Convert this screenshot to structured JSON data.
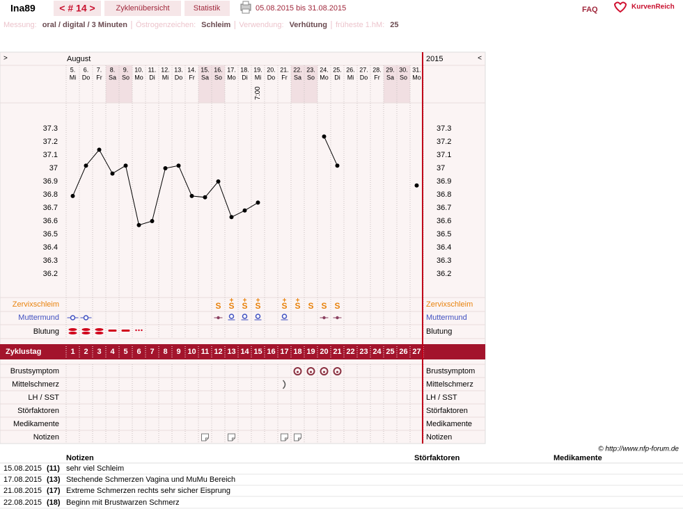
{
  "header": {
    "user": "Ina89",
    "cycle": "< # 14 >",
    "tabs": [
      "Zyklenübersicht",
      "Statistik"
    ],
    "date_range": "05.08.2015 bis 31.08.2015",
    "faq": "FAQ",
    "logo": "KurvenReich"
  },
  "info": [
    {
      "label": "Messung:",
      "value": "oral / digital / 3 Minuten"
    },
    {
      "label": "Östrogenzeichen:",
      "value": "Schleim"
    },
    {
      "label": "Verwendung:",
      "value": "Verhütung"
    },
    {
      "label": "früheste 1.hM:",
      "value": "25"
    }
  ],
  "chart_data": {
    "type": "line",
    "nav_left": ">",
    "nav_right": "<",
    "month": "August",
    "year": "2015",
    "categories": [
      "5.",
      "6.",
      "7.",
      "8.",
      "9.",
      "10.",
      "11.",
      "12.",
      "13.",
      "14.",
      "15.",
      "16.",
      "17.",
      "18.",
      "19.",
      "20.",
      "21.",
      "22.",
      "23.",
      "24.",
      "25.",
      "26.",
      "27.",
      "28.",
      "29.",
      "30.",
      "31."
    ],
    "weekdays": [
      "Mi",
      "Do",
      "Fr",
      "Sa",
      "So",
      "Mo",
      "Di",
      "Mi",
      "Do",
      "Fr",
      "Sa",
      "So",
      "Mo",
      "Di",
      "Mi",
      "Do",
      "Fr",
      "Sa",
      "So",
      "Mo",
      "Di",
      "Mi",
      "Do",
      "Fr",
      "Sa",
      "So",
      "Mo"
    ],
    "times": [
      null,
      null,
      null,
      null,
      null,
      null,
      null,
      null,
      null,
      null,
      null,
      null,
      null,
      null,
      "7:00",
      null,
      null,
      null,
      null,
      null,
      null,
      null,
      null,
      null,
      null,
      null,
      null
    ],
    "values": [
      36.79,
      37.02,
      37.14,
      36.96,
      37.02,
      36.57,
      36.6,
      37.0,
      37.02,
      36.79,
      36.78,
      36.9,
      36.63,
      36.68,
      36.74,
      null,
      null,
      null,
      null,
      37.24,
      37.02,
      null,
      null,
      null,
      null,
      null,
      36.87
    ],
    "color": "#000000",
    "ylim": [
      36.2,
      37.3
    ],
    "yticks": [
      37.3,
      37.2,
      37.1,
      37,
      36.9,
      36.8,
      36.7,
      36.6,
      36.5,
      36.4,
      36.3,
      36.2
    ],
    "grid": false,
    "rows_top": [
      {
        "label": "Zervixschleim",
        "color": "#e8820c",
        "values": [
          null,
          null,
          null,
          null,
          null,
          null,
          null,
          null,
          null,
          null,
          null,
          "S",
          "S+",
          "S+",
          "S+",
          null,
          "S+",
          "S+",
          "S",
          "S",
          "S",
          null,
          null,
          null,
          null,
          null,
          null
        ]
      },
      {
        "label": "Muttermund",
        "color": "#4050c0",
        "values": [
          "open-line",
          "open-line",
          null,
          null,
          null,
          null,
          null,
          null,
          null,
          null,
          null,
          "dot-line",
          "open",
          "open",
          "open",
          null,
          "open",
          null,
          null,
          "dot-line",
          "dot-line",
          null,
          null,
          null,
          null,
          null,
          null
        ]
      },
      {
        "label": "Blutung",
        "color": "#000000",
        "values": [
          "heavy",
          "heavy",
          "heavy",
          "medium",
          "medium",
          "light",
          null,
          null,
          null,
          null,
          null,
          null,
          null,
          null,
          null,
          null,
          null,
          null,
          null,
          null,
          null,
          null,
          null,
          null,
          null,
          null,
          null
        ]
      }
    ],
    "cycle_day_label": "Zyklustag",
    "cycle_days": [
      1,
      2,
      3,
      4,
      5,
      6,
      7,
      8,
      9,
      10,
      11,
      12,
      13,
      14,
      15,
      16,
      17,
      18,
      19,
      20,
      21,
      22,
      23,
      24,
      25,
      26,
      27
    ],
    "rows_bottom": [
      {
        "label": "Brustsymptom",
        "values": [
          null,
          null,
          null,
          null,
          null,
          null,
          null,
          null,
          null,
          null,
          null,
          null,
          null,
          null,
          null,
          null,
          null,
          "circle",
          "circle",
          "circle",
          "circle",
          null,
          null,
          null,
          null,
          null,
          null
        ]
      },
      {
        "label": "Mittelschmerz",
        "values": [
          null,
          null,
          null,
          null,
          null,
          null,
          null,
          null,
          null,
          null,
          null,
          null,
          null,
          null,
          null,
          null,
          "right",
          null,
          null,
          null,
          null,
          null,
          null,
          null,
          null,
          null,
          null
        ]
      },
      {
        "label": "LH / SST",
        "values": [
          null,
          null,
          null,
          null,
          null,
          null,
          null,
          null,
          null,
          null,
          null,
          null,
          null,
          null,
          null,
          null,
          null,
          null,
          null,
          null,
          null,
          null,
          null,
          null,
          null,
          null,
          null
        ]
      },
      {
        "label": "Störfaktoren",
        "values": [
          null,
          null,
          null,
          null,
          null,
          null,
          null,
          null,
          null,
          null,
          null,
          null,
          null,
          null,
          null,
          null,
          null,
          null,
          null,
          null,
          null,
          null,
          null,
          null,
          null,
          null,
          null
        ]
      },
      {
        "label": "Medikamente",
        "values": [
          null,
          null,
          null,
          null,
          null,
          null,
          null,
          null,
          null,
          null,
          null,
          null,
          null,
          null,
          null,
          null,
          null,
          null,
          null,
          null,
          null,
          null,
          null,
          null,
          null,
          null,
          null
        ]
      },
      {
        "label": "Notizen",
        "values": [
          null,
          null,
          null,
          null,
          null,
          null,
          null,
          null,
          null,
          null,
          "note",
          null,
          "note",
          null,
          null,
          null,
          "note",
          "note",
          null,
          null,
          null,
          null,
          null,
          null,
          null,
          null,
          null
        ]
      }
    ]
  },
  "copyright": "© http://www.nfp-forum.de",
  "notes_table": {
    "columns": [
      "Notizen",
      "Störfaktoren",
      "Medikamente"
    ],
    "rows": [
      [
        "15.08.2015",
        "(11)",
        "sehr viel Schleim"
      ],
      [
        "17.08.2015",
        "(13)",
        "Stechende Schmerzen Vagina und MuMu Bereich"
      ],
      [
        "21.08.2015",
        "(17)",
        "Extreme Schmerzen rechts sehr sicher Eisprung"
      ],
      [
        "22.08.2015",
        "(18)",
        "Beginn mit Brustwarzen Schmerz"
      ]
    ]
  }
}
